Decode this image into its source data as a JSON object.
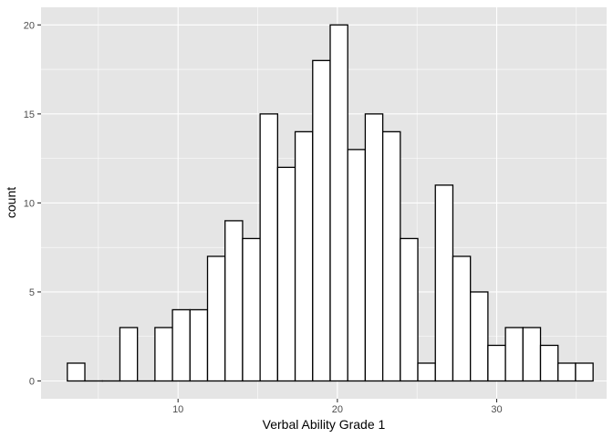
{
  "chart_data": {
    "type": "bar",
    "subtype": "histogram",
    "xlabel": "Verbal Ability Grade 1",
    "ylabel": "count",
    "xlim": [
      1.4,
      36.9
    ],
    "ylim": [
      -1,
      20.99
    ],
    "x_ticks": [
      10,
      20,
      30
    ],
    "x_minor_ticks": [
      5,
      15,
      25,
      35
    ],
    "y_ticks": [
      0,
      5,
      10,
      15,
      20
    ],
    "y_minor_ticks": [
      2.5,
      7.5,
      12.5,
      17.5
    ],
    "grid": true,
    "panel_color": "#e5e5e5",
    "grid_color": "#ffffff",
    "bar_fill": "#ffffff",
    "bar_stroke": "#000000",
    "bin_width": 1.1,
    "bins": [
      {
        "center": 3.6,
        "count": 1
      },
      {
        "center": 4.7,
        "count": 0
      },
      {
        "center": 5.8,
        "count": 0
      },
      {
        "center": 6.9,
        "count": 3
      },
      {
        "center": 8.0,
        "count": 0
      },
      {
        "center": 9.1,
        "count": 3
      },
      {
        "center": 10.2,
        "count": 4
      },
      {
        "center": 11.3,
        "count": 4
      },
      {
        "center": 12.4,
        "count": 7
      },
      {
        "center": 13.5,
        "count": 9
      },
      {
        "center": 14.6,
        "count": 8
      },
      {
        "center": 15.7,
        "count": 15
      },
      {
        "center": 16.8,
        "count": 12
      },
      {
        "center": 17.9,
        "count": 14
      },
      {
        "center": 19.0,
        "count": 18
      },
      {
        "center": 20.1,
        "count": 20
      },
      {
        "center": 21.2,
        "count": 13
      },
      {
        "center": 22.3,
        "count": 15
      },
      {
        "center": 23.4,
        "count": 14
      },
      {
        "center": 24.5,
        "count": 8
      },
      {
        "center": 25.6,
        "count": 1
      },
      {
        "center": 26.7,
        "count": 11
      },
      {
        "center": 27.8,
        "count": 7
      },
      {
        "center": 28.9,
        "count": 5
      },
      {
        "center": 30.0,
        "count": 2
      },
      {
        "center": 31.1,
        "count": 3
      },
      {
        "center": 32.2,
        "count": 3
      },
      {
        "center": 33.3,
        "count": 2
      },
      {
        "center": 34.4,
        "count": 1
      },
      {
        "center": 35.5,
        "count": 1
      }
    ]
  }
}
